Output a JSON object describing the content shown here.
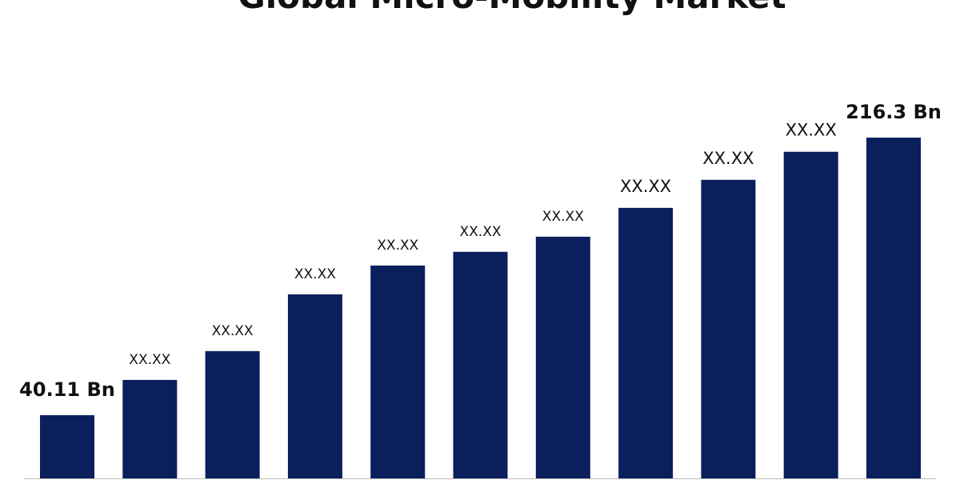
{
  "chart_data": {
    "type": "bar",
    "title": "Global Micro-Mobility Market",
    "categories": [
      null,
      null,
      null,
      null,
      null,
      null,
      null,
      null,
      null,
      null,
      null
    ],
    "values": [
      40.11,
      62.5,
      80.8,
      116.8,
      135.1,
      143.8,
      153.4,
      171.7,
      189.5,
      207.3,
      216.3
    ],
    "value_labels": [
      "40.11 Bn",
      "XX.XX",
      "XX.XX",
      "XX.XX",
      "XX.XX",
      "XX.XX",
      "XX.XX",
      "XX.XX",
      "XX.XX",
      "XX.XX",
      "216.3 Bn"
    ],
    "color": "#0a1f5c"
  }
}
